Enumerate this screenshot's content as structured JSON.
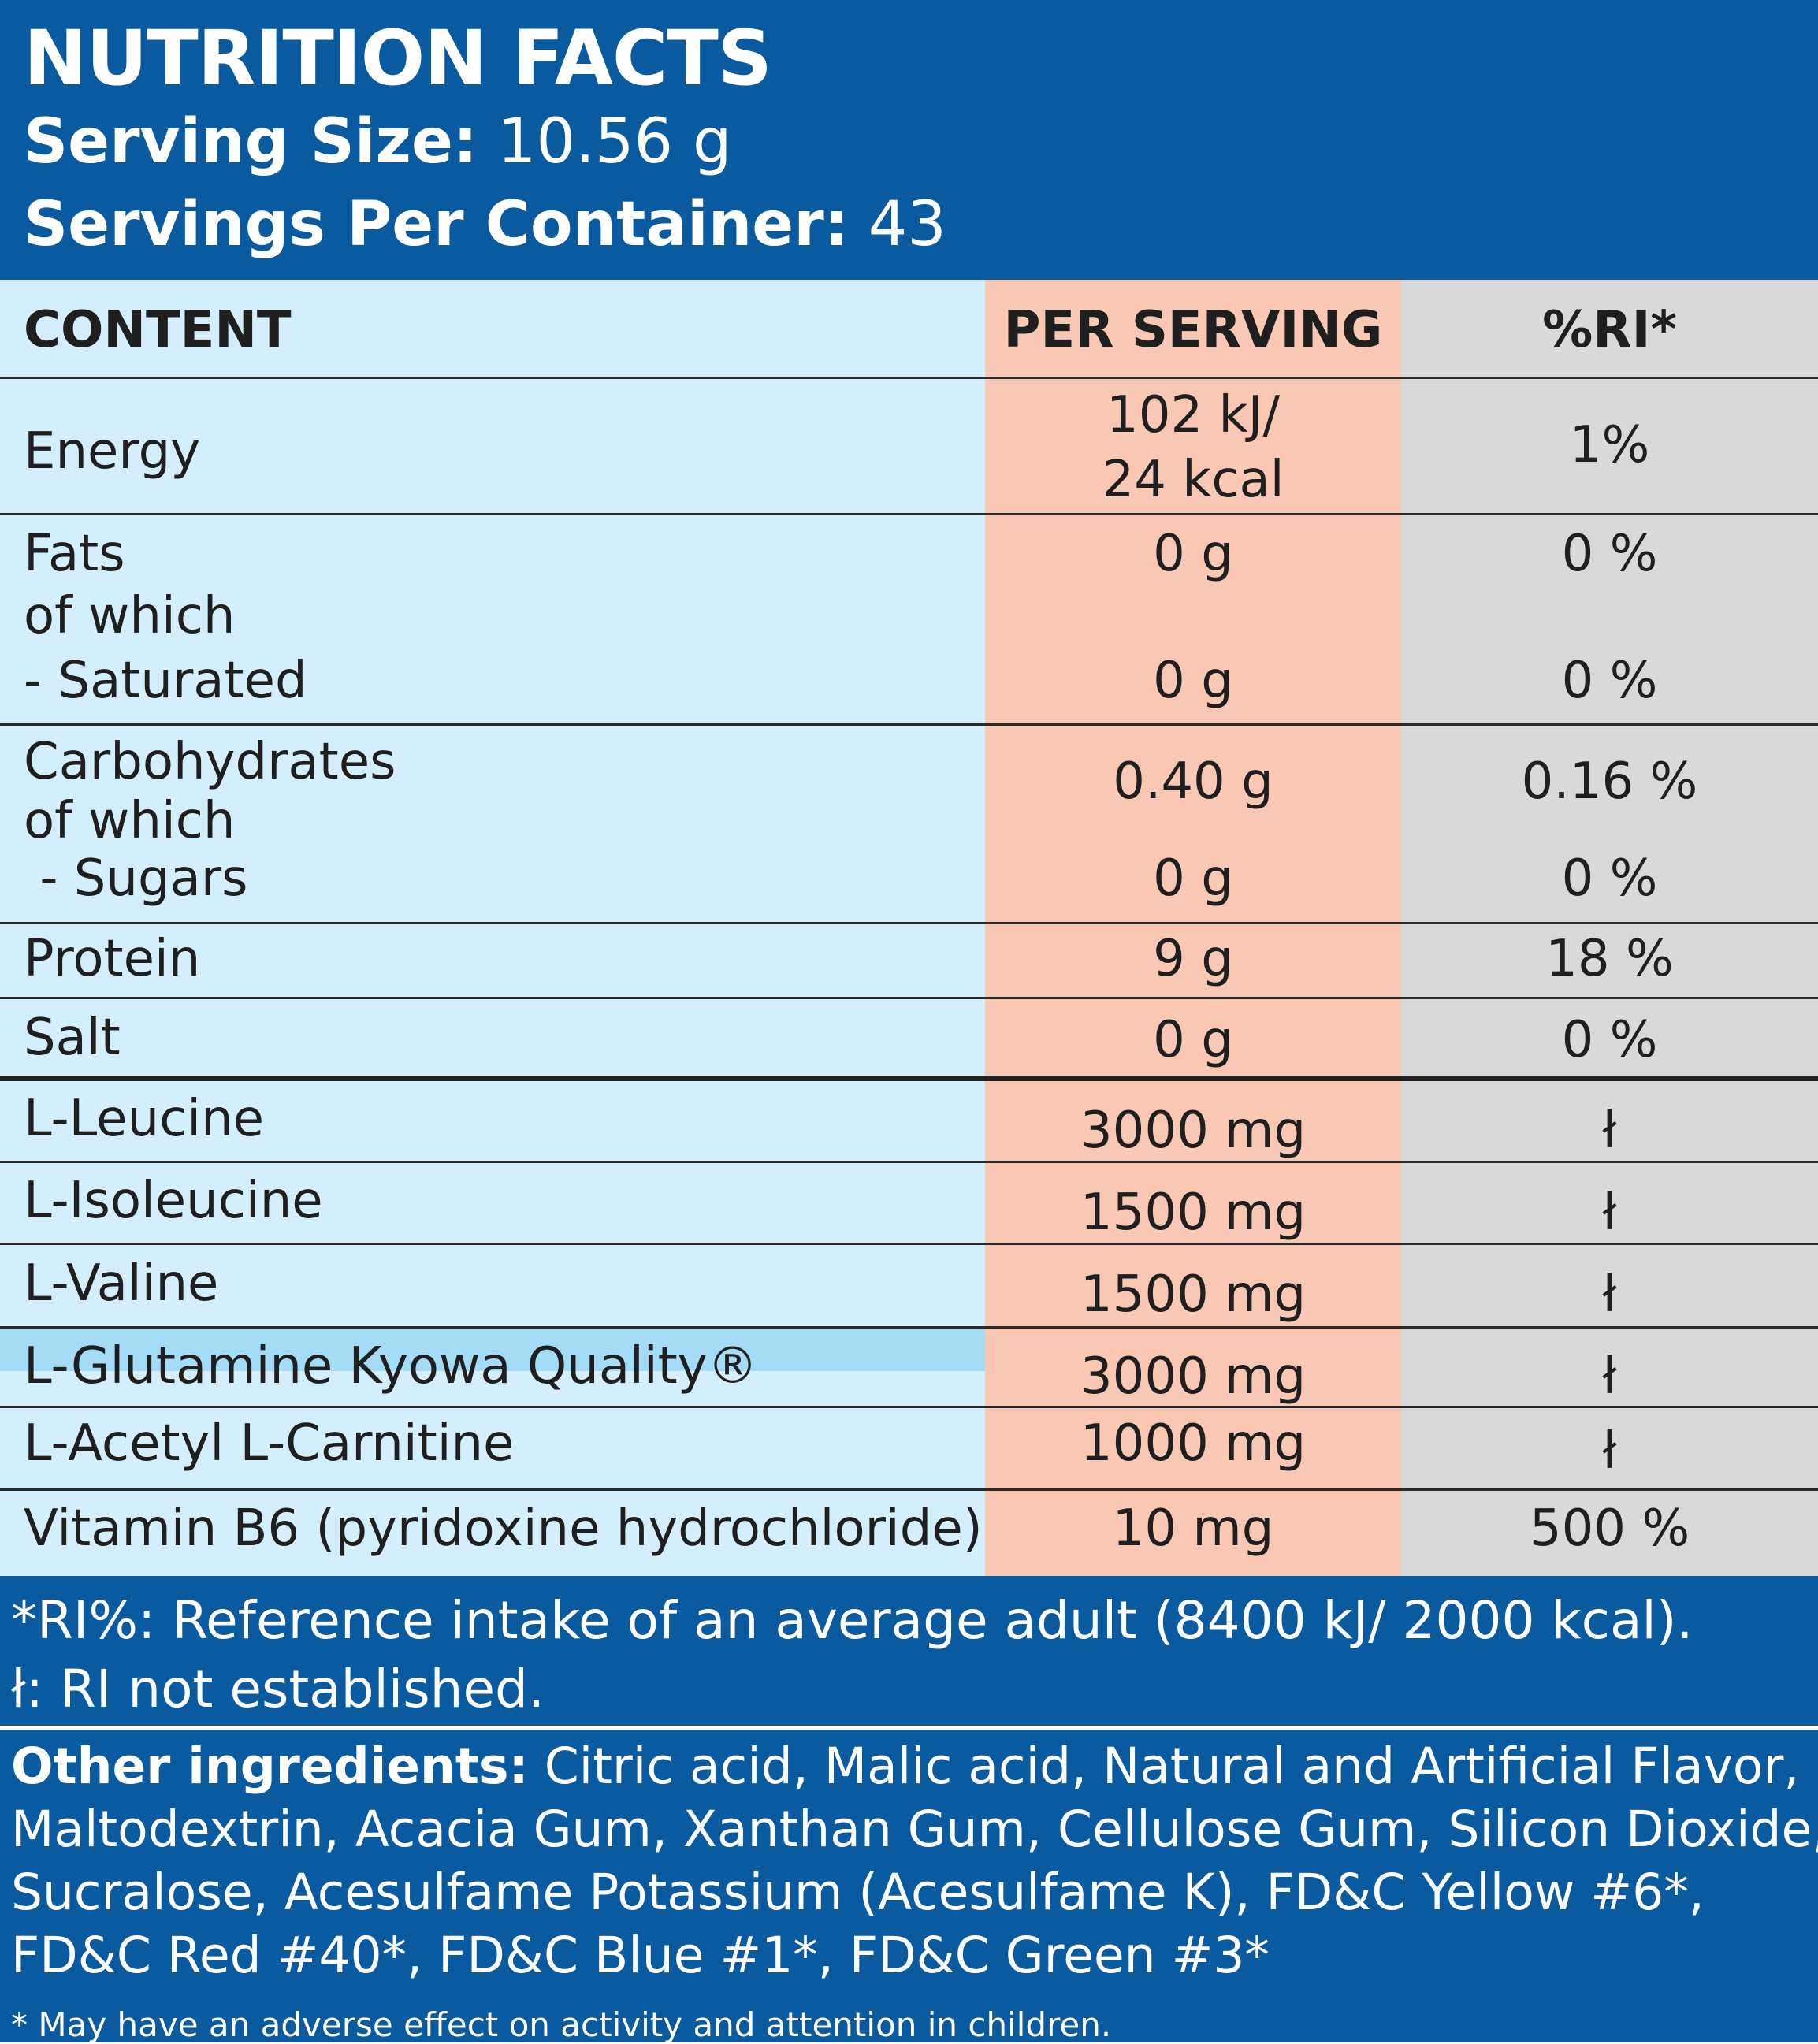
{
  "header": {
    "title": "NUTRITION FACTS",
    "serving_size_label": "Serving Size:",
    "serving_size_value": " 10.56 g",
    "servings_label": "Servings Per Container:",
    "servings_value": " 43"
  },
  "columns": {
    "content": "CONTENT",
    "per_serving": "PER SERVING",
    "ri": "%RI*"
  },
  "rows": {
    "energy": {
      "label": "Energy",
      "per_line1": "102 kJ/",
      "per_line2": "24 kcal",
      "ri": "1%"
    },
    "fats": {
      "label": "Fats",
      "of_which": "of which",
      "per": "0 g",
      "ri": "0 %"
    },
    "saturated": {
      "label": "- Saturated",
      "per": "0 g",
      "ri": "0 %"
    },
    "carbs": {
      "label": "Carbohydrates",
      "of_which": "of which",
      "per": "0.40 g",
      "ri": "0.16 %"
    },
    "sugars": {
      "label": " - Sugars",
      "per": "0 g",
      "ri": "0 %"
    },
    "protein": {
      "label": "Protein",
      "per": "9 g",
      "ri": "18 %"
    },
    "salt": {
      "label": "Salt",
      "per": "0 g",
      "ri": "0 %"
    },
    "leucine": {
      "label": "L-Leucine",
      "per": "3000 mg",
      "ri": "ł"
    },
    "isoleucine": {
      "label": "L-Isoleucine",
      "per": "1500 mg",
      "ri": "ł"
    },
    "valine": {
      "label": "L-Valine",
      "per": "1500 mg",
      "ri": "ł"
    },
    "glutamine": {
      "label": "L-Glutamine Kyowa Quality®",
      "per": "3000 mg",
      "ri": "ł"
    },
    "carnitine": {
      "label": "L-Acetyl L-Carnitine",
      "per": "1000 mg",
      "ri": "ł"
    },
    "b6": {
      "label": "Vitamin B6 (pyridoxine hydrochloride)",
      "per": "10 mg",
      "ri": "500 %"
    }
  },
  "footnotes": {
    "ri_note": "*RI%: Reference intake of an average adult (8400 kJ/ 2000 kcal).",
    "not_established": "ł: RI not established."
  },
  "ingredients": {
    "label": "Other ingredients:",
    "line1": " Citric acid, Malic acid, Natural and Artificial Flavor,",
    "line2": "Maltodextrin, Acacia Gum, Xanthan Gum, Cellulose Gum, Silicon Dioxide,",
    "line3": "Sucralose, Acesulfame Potassium (Acesulfame K), FD&C Yellow #6*,",
    "line4": "FD&C Red #40*, FD&C Blue #1*, FD&C Green #3*",
    "warning": "* May have an adverse effect on activity and attention in children."
  },
  "colors": {
    "header_blue": "#0a5a9f",
    "content_col": "#d4eefb",
    "per_serving_col": "#f9c8b5",
    "ri_col": "#d8d9da",
    "highlight_row": "#a5dcf5"
  }
}
